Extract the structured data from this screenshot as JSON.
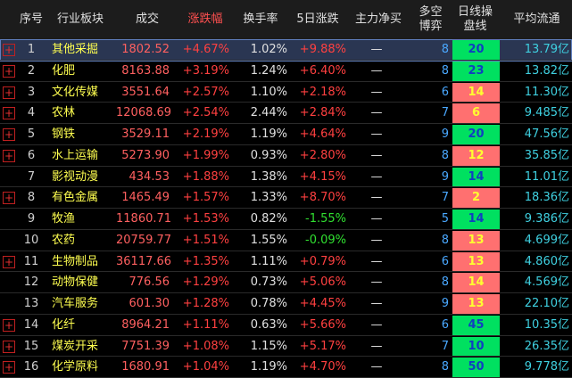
{
  "table": {
    "header": [
      "序号",
      "行业板块",
      "成交",
      "涨跌幅",
      "换手率",
      "5日涨跌",
      "主力净买",
      [
        "多空",
        "博弈"
      ],
      [
        "日线操",
        "盘线"
      ],
      "平均流通"
    ],
    "rows": [
      [
        "1",
        "其他采掘",
        "1802.52",
        "+4.67%",
        "1.02%",
        "+9.88%",
        "—",
        "8",
        "20",
        "13.79亿"
      ],
      [
        "2",
        "化肥",
        "8163.88",
        "+3.19%",
        "1.24%",
        "+6.40%",
        "—",
        "8",
        "23",
        "13.82亿"
      ],
      [
        "3",
        "文化传媒",
        "3551.64",
        "+2.57%",
        "1.10%",
        "+2.18%",
        "—",
        "6",
        "14",
        "11.30亿"
      ],
      [
        "4",
        "农林",
        "12068.69",
        "+2.54%",
        "2.44%",
        "+2.84%",
        "—",
        "7",
        "6",
        "9.485亿"
      ],
      [
        "5",
        "钢铁",
        "3529.11",
        "+2.19%",
        "1.19%",
        "+4.64%",
        "—",
        "9",
        "20",
        "47.56亿"
      ],
      [
        "6",
        "水上运输",
        "5273.90",
        "+1.99%",
        "0.93%",
        "+2.80%",
        "—",
        "8",
        "12",
        "35.85亿"
      ],
      [
        "7",
        "影视动漫",
        "434.53",
        "+1.88%",
        "1.38%",
        "+4.15%",
        "—",
        "9",
        "14",
        "11.01亿"
      ],
      [
        "8",
        "有色金属",
        "1465.49",
        "+1.57%",
        "1.33%",
        "+8.70%",
        "—",
        "7",
        "2",
        "18.36亿"
      ],
      [
        "9",
        "牧渔",
        "11860.71",
        "+1.53%",
        "0.82%",
        "-1.55%",
        "—",
        "5",
        "14",
        "9.386亿"
      ],
      [
        "10",
        "农药",
        "20759.77",
        "+1.51%",
        "1.55%",
        "-0.09%",
        "—",
        "8",
        "13",
        "4.699亿"
      ],
      [
        "11",
        "生物制品",
        "36117.66",
        "+1.35%",
        "1.11%",
        "+0.79%",
        "—",
        "6",
        "13",
        "4.860亿"
      ],
      [
        "12",
        "动物保健",
        "776.56",
        "+1.29%",
        "0.73%",
        "+5.06%",
        "—",
        "8",
        "14",
        "4.569亿"
      ],
      [
        "13",
        "汽车服务",
        "601.30",
        "+1.28%",
        "0.78%",
        "+4.45%",
        "—",
        "9",
        "13",
        "22.10亿"
      ],
      [
        "14",
        "化纤",
        "8964.21",
        "+1.11%",
        "0.63%",
        "+5.66%",
        "—",
        "6",
        "45",
        "10.35亿"
      ],
      [
        "15",
        "煤炭开采",
        "7751.39",
        "+1.08%",
        "1.15%",
        "+5.17%",
        "—",
        "7",
        "10",
        "26.35亿"
      ],
      [
        "16",
        "化学原料",
        "1680.91",
        "+1.04%",
        "1.19%",
        "+4.70%",
        "—",
        "8",
        "50",
        "9.778亿"
      ]
    ],
    "line_cell_colors": [
      "#00e060",
      "#00e060",
      "#ff7070",
      "#ff7070",
      "#00e060",
      "#ff7070",
      "#00e060",
      "#ff7070",
      "#00e060",
      "#ff7070",
      "#ff7070",
      "#ff7070",
      "#ff7070",
      "#00e060",
      "#00e060",
      "#00e060"
    ]
  }
}
